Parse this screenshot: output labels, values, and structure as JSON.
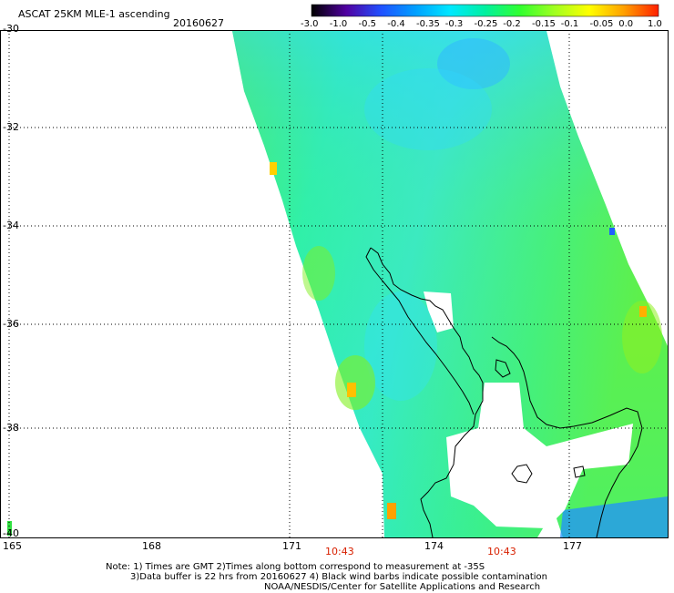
{
  "header": {
    "title": "ASCAT 25KM MLE-1 ascending",
    "date": "20160627"
  },
  "colorbar": {
    "ticks": [
      "-3.0",
      "-1.0",
      "-0.5",
      "-0.4",
      "-0.35",
      "-0.3",
      "-0.25",
      "-0.2",
      "-0.15",
      "-0.1",
      "-0.05",
      "0.0",
      "1.0"
    ],
    "colors": [
      "#000000",
      "#5000a0",
      "#2050ff",
      "#00a0ff",
      "#00e8ff",
      "#00f0a0",
      "#30ff30",
      "#a0ff20",
      "#ffff00",
      "#ffa000",
      "#ff2000"
    ]
  },
  "axes": {
    "lat_labels": [
      "-30",
      "-32",
      "-34",
      "-36",
      "-38",
      "-40"
    ],
    "lon_labels": [
      "165",
      "168",
      "171",
      "174",
      "177"
    ]
  },
  "times": [
    "10:43",
    "10:43"
  ],
  "notes": {
    "line1": "Note: 1) Times are GMT 2)Times along bottom correspond to measurement at -35S",
    "line2": "3)Data buffer is 22 hrs from 20160627 4) Black wind barbs indicate possible contamination",
    "line3": "NOAA/NESDIS/Center for Satellite Applications and Research"
  }
}
